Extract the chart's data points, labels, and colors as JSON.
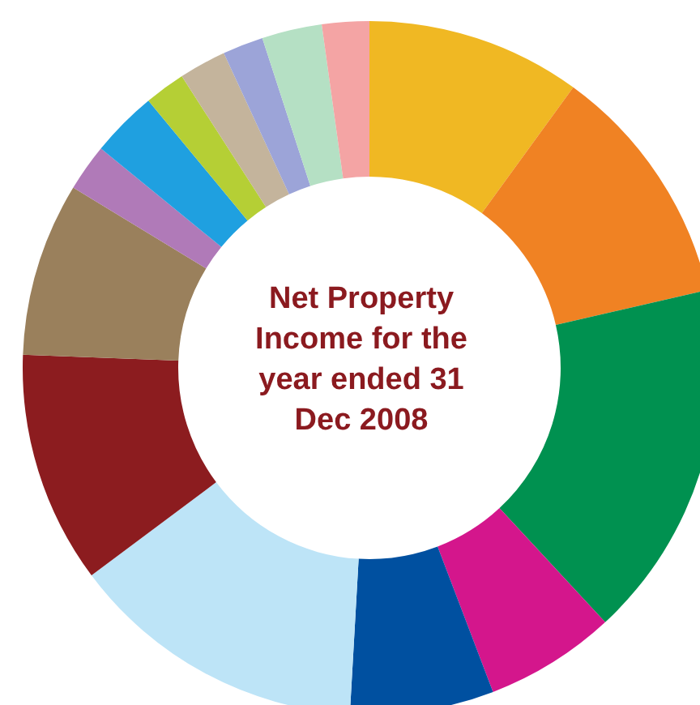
{
  "chart_data": {
    "type": "donut",
    "title": "Net Property Income for the year ended 31 Dec 2008",
    "categories": [
      null,
      null,
      null,
      null,
      null,
      null,
      null,
      null,
      null,
      null,
      null,
      null,
      null,
      null,
      null
    ],
    "values": [
      10,
      11.4,
      16.7,
      6.1,
      6.7,
      13.9,
      10.8,
      8.1,
      2.2,
      3.1,
      1.9,
      2.2,
      1.9,
      2.8,
      2.2
    ],
    "colors": [
      "#f0b823",
      "#f08223",
      "#009150",
      "#d4168c",
      "#0050a0",
      "#bde4f7",
      "#8c1c1f",
      "#9a805c",
      "#b07ab8",
      "#1fa0e0",
      "#b5cf35",
      "#c4b49c",
      "#9ca4d8",
      "#b5e0c4",
      "#f4a4a4"
    ]
  }
}
